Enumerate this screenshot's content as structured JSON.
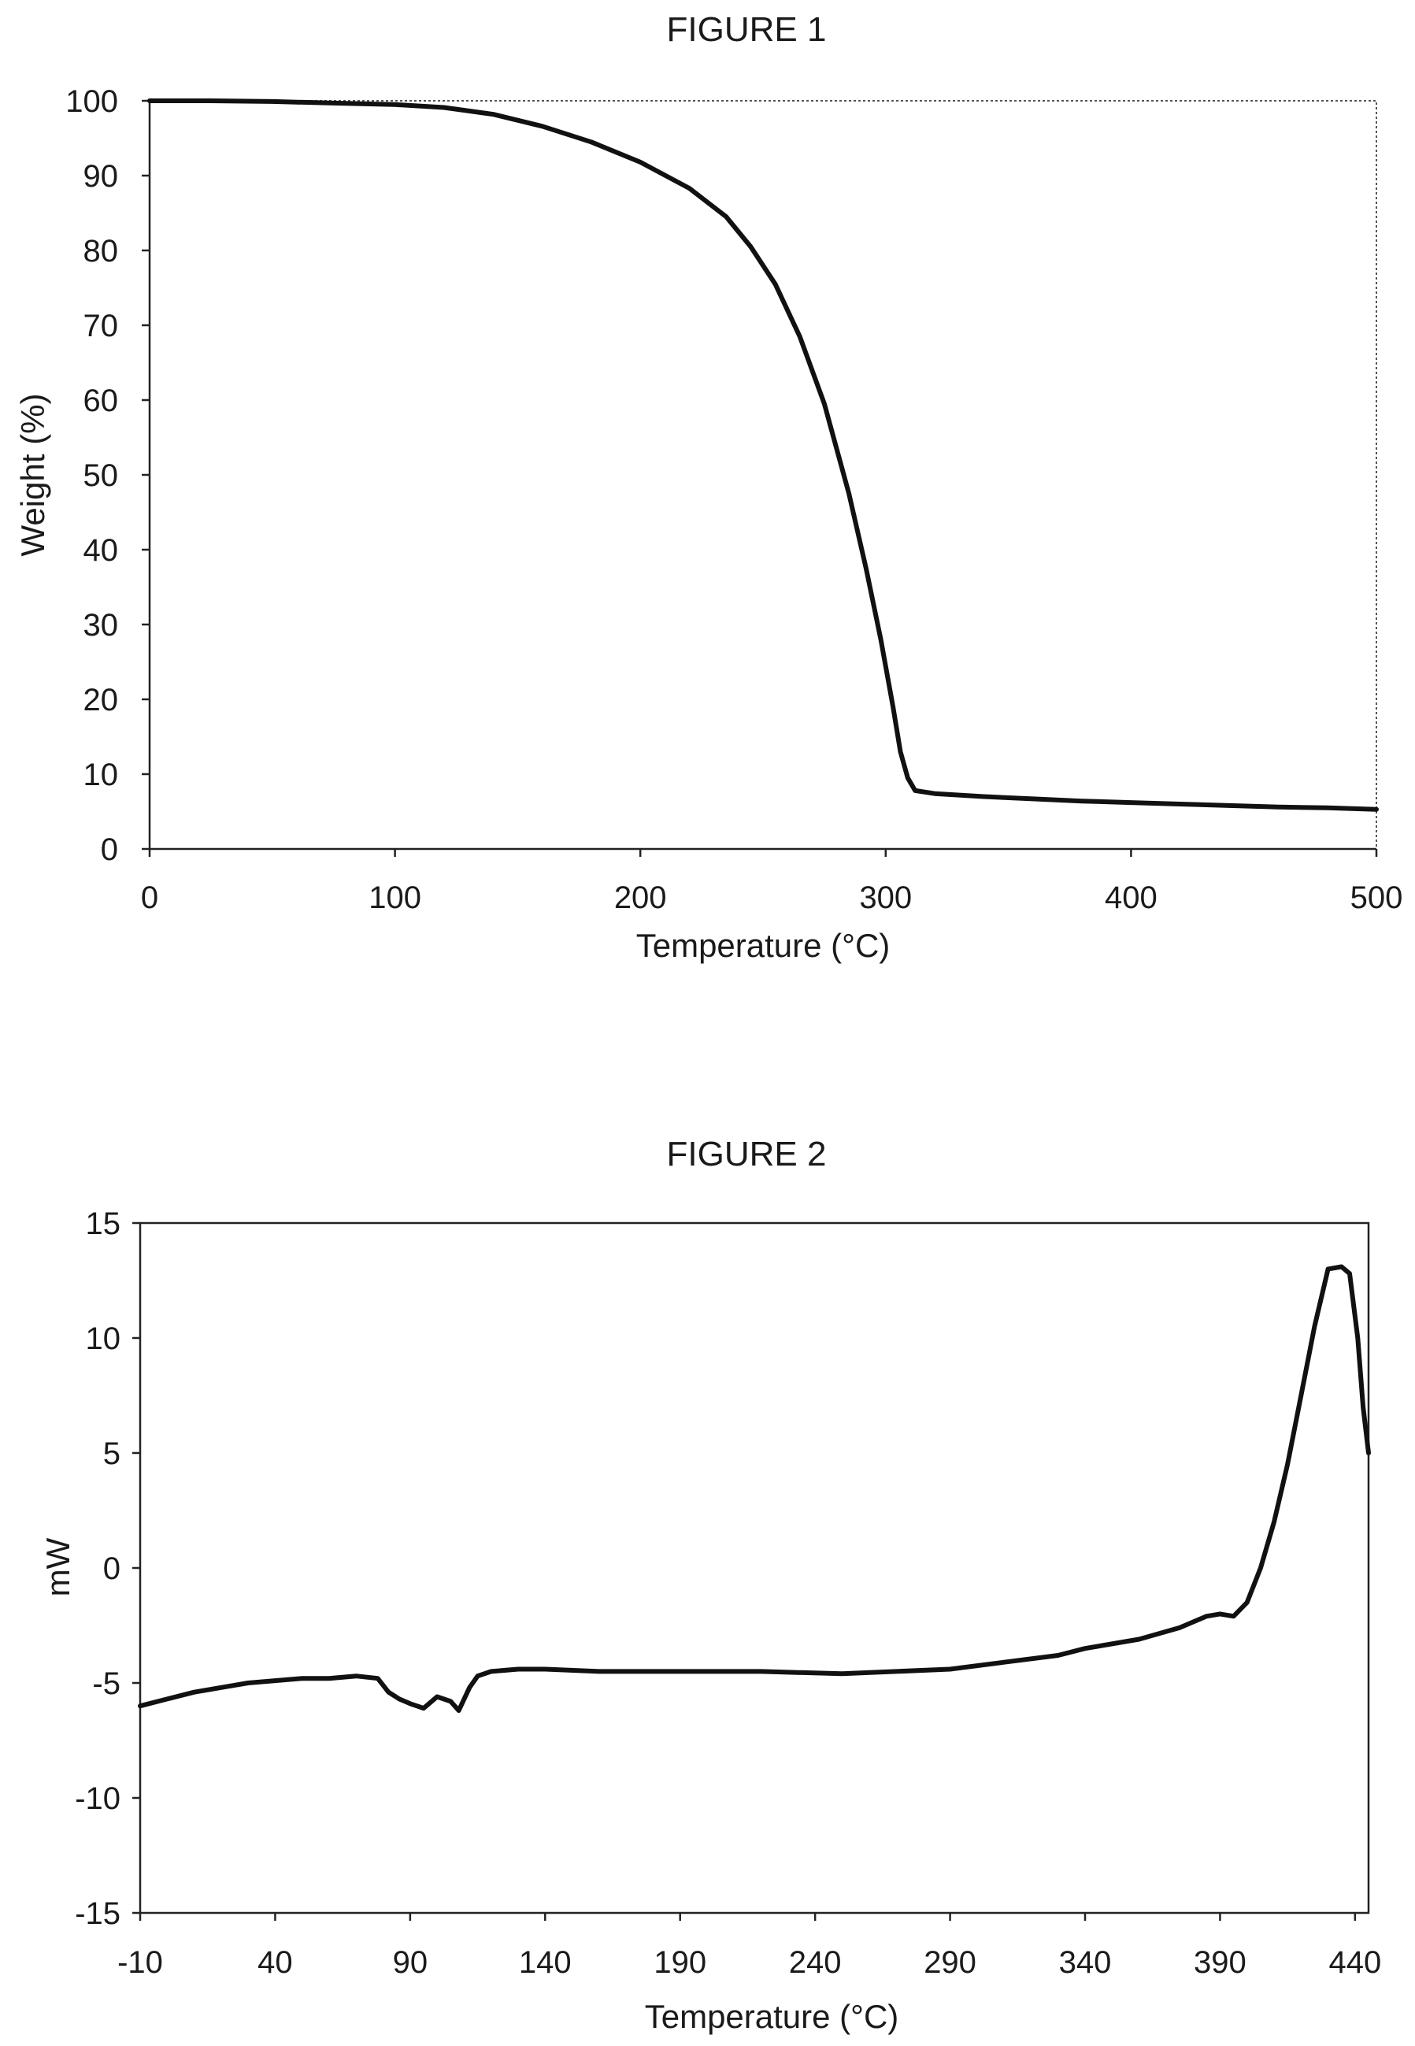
{
  "chart_data": [
    {
      "type": "line",
      "title": "FIGURE 1",
      "xlabel": "Temperature (°C)",
      "ylabel": "Weight (%)",
      "xlim": [
        0,
        500
      ],
      "ylim": [
        0,
        100
      ],
      "x_ticks": [
        "0",
        "100",
        "200",
        "300",
        "400",
        "500"
      ],
      "y_ticks": [
        "0",
        "10",
        "20",
        "30",
        "40",
        "50",
        "60",
        "70",
        "80",
        "90",
        "100"
      ],
      "grid": false,
      "legend": "none",
      "color": "#111111",
      "series": [
        {
          "x": [
            0,
            25,
            50,
            75,
            100,
            120,
            140,
            160,
            180,
            200,
            220,
            235,
            245,
            255,
            265,
            275,
            285,
            292,
            298,
            303,
            306,
            309,
            312,
            320,
            340,
            360,
            380,
            400,
            420,
            440,
            460,
            480,
            500
          ],
          "values": [
            100,
            100,
            99.9,
            99.7,
            99.5,
            99.1,
            98.2,
            96.6,
            94.5,
            91.8,
            88.3,
            84.5,
            80.5,
            75.5,
            68.5,
            59.5,
            47.5,
            37.5,
            28,
            19,
            13,
            9.5,
            7.8,
            7.4,
            7.0,
            6.7,
            6.4,
            6.2,
            6.0,
            5.8,
            5.6,
            5.5,
            5.3
          ]
        }
      ]
    },
    {
      "type": "line",
      "title": "FIGURE 2",
      "xlabel": "Temperature (°C)",
      "ylabel": "mW",
      "xlim": [
        -10,
        445
      ],
      "ylim": [
        -15,
        15
      ],
      "x_ticks": [
        "-10",
        "40",
        "90",
        "140",
        "190",
        "240",
        "290",
        "340",
        "390",
        "440"
      ],
      "y_ticks": [
        "-15",
        "-10",
        "-5",
        "0",
        "5",
        "10",
        "15"
      ],
      "grid": false,
      "legend": "none",
      "color": "#111111",
      "series": [
        {
          "x": [
            -10,
            0,
            10,
            20,
            30,
            40,
            50,
            60,
            70,
            78,
            82,
            86,
            90,
            95,
            100,
            105,
            108,
            112,
            115,
            120,
            130,
            140,
            160,
            190,
            220,
            250,
            270,
            290,
            310,
            330,
            340,
            360,
            375,
            385,
            390,
            395,
            400,
            405,
            410,
            415,
            420,
            425,
            430,
            435,
            438,
            441,
            443,
            445
          ],
          "values": [
            -6.0,
            -5.7,
            -5.4,
            -5.2,
            -5.0,
            -4.9,
            -4.8,
            -4.8,
            -4.7,
            -4.8,
            -5.4,
            -5.7,
            -5.9,
            -6.1,
            -5.6,
            -5.8,
            -6.2,
            -5.2,
            -4.7,
            -4.5,
            -4.4,
            -4.4,
            -4.5,
            -4.5,
            -4.5,
            -4.6,
            -4.5,
            -4.4,
            -4.1,
            -3.8,
            -3.5,
            -3.1,
            -2.6,
            -2.1,
            -2.0,
            -2.1,
            -1.5,
            0.0,
            2.0,
            4.5,
            7.5,
            10.5,
            13.0,
            13.1,
            12.8,
            10.0,
            7.0,
            5.0
          ]
        }
      ]
    }
  ]
}
